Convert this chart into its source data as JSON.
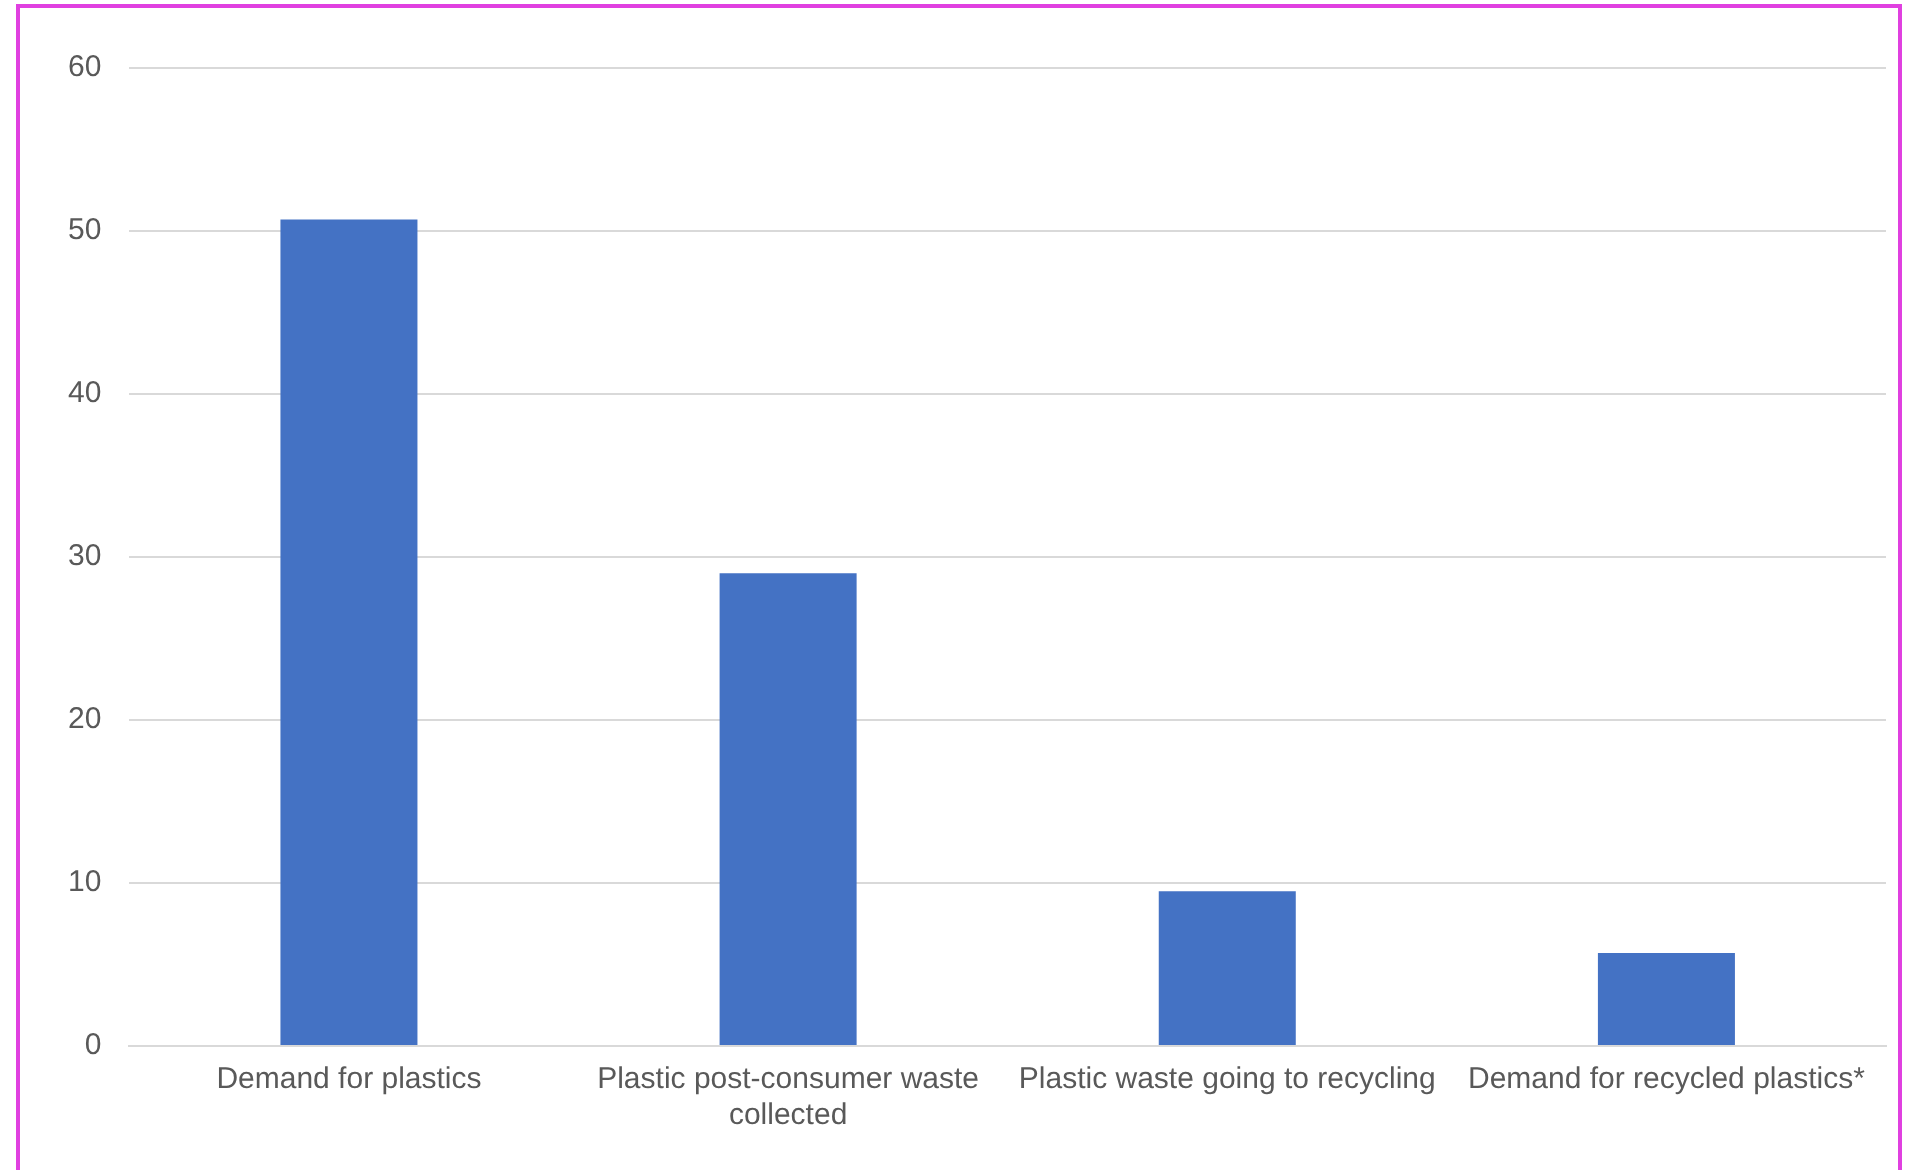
{
  "chart_data": {
    "type": "bar",
    "categories": [
      "Demand for plastics",
      "Plastic post-consumer waste collected",
      "Plastic waste going to recycling",
      "Demand for recycled plastics*"
    ],
    "values": [
      50.7,
      29.0,
      9.5,
      5.7
    ],
    "color": "#4472c4",
    "ylim": [
      0,
      60
    ],
    "yticks": [
      0,
      10,
      20,
      30,
      40,
      50,
      60
    ],
    "grid": "y"
  }
}
